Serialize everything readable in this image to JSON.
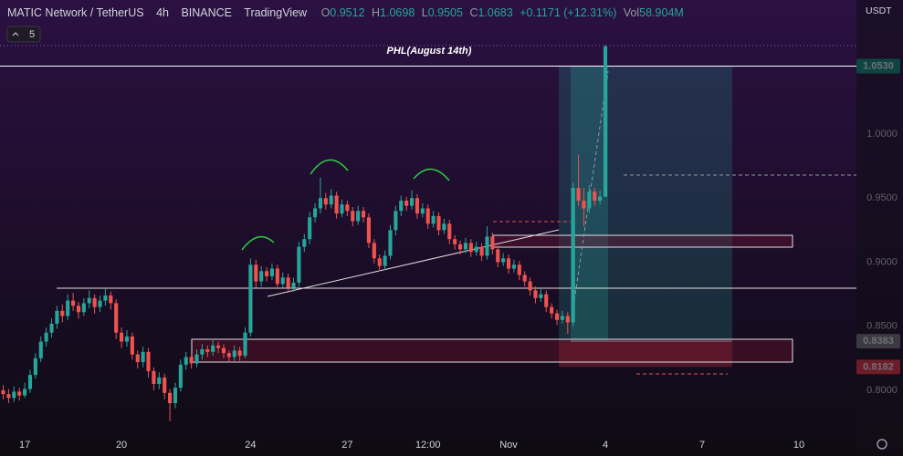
{
  "header": {
    "symbol": "MATIC Network / TetherUS",
    "interval": "4h",
    "exchange": "BINANCE",
    "source": "TradingView",
    "ohlc": [
      {
        "key": "O",
        "value": "0.9512"
      },
      {
        "key": "H",
        "value": "1.0698"
      },
      {
        "key": "L",
        "value": "0.9505"
      },
      {
        "key": "C",
        "value": "1.0683"
      }
    ],
    "change": "+0.1171 (+12.31%)",
    "volume": {
      "key": "Vol",
      "value": "58.904M"
    },
    "indicators": "5",
    "currency": "USDT"
  },
  "chart_data": {
    "type": "candlestick",
    "annotation": "PHL(August 14th)",
    "up_color": "#26a69a",
    "down_color": "#ef5350",
    "xlim": [
      -0.6,
      158.7
    ],
    "xticks": [
      {
        "value": 4,
        "label": "17"
      },
      {
        "value": 22,
        "label": "20"
      },
      {
        "value": 46,
        "label": "24"
      },
      {
        "value": 64,
        "label": "27"
      },
      {
        "value": 79,
        "label": "12:00"
      },
      {
        "value": 94,
        "label": "Nov"
      },
      {
        "value": 112,
        "label": "4"
      },
      {
        "value": 130,
        "label": "7"
      },
      {
        "value": 148,
        "label": "10"
      }
    ],
    "ylim": [
      0.7644,
      1.1046
    ],
    "yticks": [
      {
        "value": 0.8,
        "label": "0.8000"
      },
      {
        "value": 0.85,
        "label": "0.8500"
      },
      {
        "value": 0.9,
        "label": "0.9000"
      },
      {
        "value": 0.95,
        "label": "0.9500"
      },
      {
        "value": 1.0,
        "label": "1.0000"
      }
    ],
    "price_labels": [
      {
        "value": 1.053,
        "label": "1.0530",
        "color": "#089981"
      },
      {
        "value": 0.8383,
        "label": "0.8383",
        "color": "#787b86"
      },
      {
        "value": 0.8182,
        "label": "0.8182",
        "color": "#f23645"
      }
    ],
    "candles": [
      [
        0.8,
        0.804,
        0.793,
        0.797
      ],
      [
        0.797,
        0.801,
        0.79,
        0.794
      ],
      [
        0.794,
        0.803,
        0.791,
        0.799
      ],
      [
        0.799,
        0.802,
        0.792,
        0.796
      ],
      [
        0.796,
        0.806,
        0.794,
        0.801
      ],
      [
        0.801,
        0.816,
        0.798,
        0.812
      ],
      [
        0.812,
        0.829,
        0.809,
        0.825
      ],
      [
        0.825,
        0.842,
        0.822,
        0.838
      ],
      [
        0.838,
        0.849,
        0.834,
        0.845
      ],
      [
        0.845,
        0.856,
        0.841,
        0.852
      ],
      [
        0.852,
        0.866,
        0.848,
        0.862
      ],
      [
        0.862,
        0.867,
        0.853,
        0.858
      ],
      [
        0.858,
        0.875,
        0.855,
        0.87
      ],
      [
        0.87,
        0.876,
        0.862,
        0.866
      ],
      [
        0.866,
        0.869,
        0.856,
        0.861
      ],
      [
        0.861,
        0.872,
        0.858,
        0.868
      ],
      [
        0.868,
        0.878,
        0.864,
        0.872
      ],
      [
        0.872,
        0.875,
        0.86,
        0.865
      ],
      [
        0.865,
        0.874,
        0.861,
        0.87
      ],
      [
        0.87,
        0.879,
        0.866,
        0.874
      ],
      [
        0.874,
        0.877,
        0.863,
        0.868
      ],
      [
        0.868,
        0.871,
        0.84,
        0.845
      ],
      [
        0.845,
        0.849,
        0.833,
        0.838
      ],
      [
        0.838,
        0.847,
        0.834,
        0.842
      ],
      [
        0.842,
        0.845,
        0.824,
        0.828
      ],
      [
        0.828,
        0.831,
        0.817,
        0.822
      ],
      [
        0.822,
        0.834,
        0.818,
        0.83
      ],
      [
        0.83,
        0.833,
        0.81,
        0.815
      ],
      [
        0.815,
        0.818,
        0.8,
        0.805
      ],
      [
        0.805,
        0.814,
        0.801,
        0.81
      ],
      [
        0.81,
        0.813,
        0.793,
        0.798
      ],
      [
        0.798,
        0.801,
        0.776,
        0.79
      ],
      [
        0.79,
        0.806,
        0.786,
        0.802
      ],
      [
        0.802,
        0.824,
        0.799,
        0.82
      ],
      [
        0.82,
        0.83,
        0.816,
        0.826
      ],
      [
        0.826,
        0.829,
        0.817,
        0.821
      ],
      [
        0.821,
        0.832,
        0.818,
        0.828
      ],
      [
        0.828,
        0.836,
        0.824,
        0.832
      ],
      [
        0.832,
        0.835,
        0.826,
        0.83
      ],
      [
        0.83,
        0.839,
        0.827,
        0.835
      ],
      [
        0.835,
        0.838,
        0.829,
        0.833
      ],
      [
        0.833,
        0.836,
        0.825,
        0.829
      ],
      [
        0.829,
        0.831,
        0.822,
        0.826
      ],
      [
        0.826,
        0.835,
        0.823,
        0.831
      ],
      [
        0.831,
        0.834,
        0.823,
        0.827
      ],
      [
        0.827,
        0.849,
        0.825,
        0.845
      ],
      [
        0.845,
        0.903,
        0.842,
        0.898
      ],
      [
        0.898,
        0.902,
        0.88,
        0.885
      ],
      [
        0.885,
        0.897,
        0.881,
        0.893
      ],
      [
        0.893,
        0.896,
        0.885,
        0.889
      ],
      [
        0.889,
        0.899,
        0.886,
        0.895
      ],
      [
        0.895,
        0.898,
        0.879,
        0.883
      ],
      [
        0.883,
        0.892,
        0.88,
        0.888
      ],
      [
        0.888,
        0.891,
        0.876,
        0.88
      ],
      [
        0.88,
        0.888,
        0.877,
        0.884
      ],
      [
        0.884,
        0.916,
        0.881,
        0.912
      ],
      [
        0.912,
        0.922,
        0.908,
        0.918
      ],
      [
        0.918,
        0.939,
        0.914,
        0.935
      ],
      [
        0.935,
        0.946,
        0.931,
        0.942
      ],
      [
        0.942,
        0.966,
        0.938,
        0.95
      ],
      [
        0.95,
        0.954,
        0.941,
        0.945
      ],
      [
        0.945,
        0.957,
        0.942,
        0.952
      ],
      [
        0.952,
        0.955,
        0.934,
        0.938
      ],
      [
        0.938,
        0.949,
        0.935,
        0.945
      ],
      [
        0.945,
        0.948,
        0.936,
        0.94
      ],
      [
        0.94,
        0.943,
        0.928,
        0.932
      ],
      [
        0.932,
        0.944,
        0.929,
        0.94
      ],
      [
        0.94,
        0.943,
        0.931,
        0.935
      ],
      [
        0.935,
        0.938,
        0.911,
        0.915
      ],
      [
        0.915,
        0.918,
        0.899,
        0.903
      ],
      [
        0.903,
        0.906,
        0.893,
        0.897
      ],
      [
        0.897,
        0.909,
        0.894,
        0.905
      ],
      [
        0.905,
        0.929,
        0.902,
        0.925
      ],
      [
        0.925,
        0.944,
        0.921,
        0.94
      ],
      [
        0.94,
        0.952,
        0.936,
        0.948
      ],
      [
        0.948,
        0.951,
        0.94,
        0.944
      ],
      [
        0.944,
        0.956,
        0.941,
        0.95
      ],
      [
        0.95,
        0.953,
        0.934,
        0.938
      ],
      [
        0.938,
        0.946,
        0.935,
        0.942
      ],
      [
        0.942,
        0.945,
        0.926,
        0.93
      ],
      [
        0.93,
        0.94,
        0.927,
        0.936
      ],
      [
        0.936,
        0.939,
        0.921,
        0.925
      ],
      [
        0.925,
        0.934,
        0.922,
        0.93
      ],
      [
        0.93,
        0.933,
        0.914,
        0.918
      ],
      [
        0.918,
        0.921,
        0.91,
        0.914
      ],
      [
        0.914,
        0.917,
        0.906,
        0.91
      ],
      [
        0.91,
        0.919,
        0.907,
        0.915
      ],
      [
        0.915,
        0.918,
        0.904,
        0.908
      ],
      [
        0.908,
        0.916,
        0.905,
        0.912
      ],
      [
        0.912,
        0.915,
        0.901,
        0.905
      ],
      [
        0.905,
        0.928,
        0.902,
        0.92
      ],
      [
        0.92,
        0.923,
        0.906,
        0.91
      ],
      [
        0.91,
        0.913,
        0.896,
        0.9
      ],
      [
        0.9,
        0.907,
        0.897,
        0.903
      ],
      [
        0.903,
        0.906,
        0.891,
        0.895
      ],
      [
        0.895,
        0.902,
        0.892,
        0.898
      ],
      [
        0.898,
        0.901,
        0.886,
        0.89
      ],
      [
        0.89,
        0.893,
        0.881,
        0.885
      ],
      [
        0.885,
        0.888,
        0.874,
        0.878
      ],
      [
        0.878,
        0.881,
        0.868,
        0.872
      ],
      [
        0.872,
        0.879,
        0.869,
        0.875
      ],
      [
        0.875,
        0.878,
        0.861,
        0.865
      ],
      [
        0.865,
        0.868,
        0.856,
        0.86
      ],
      [
        0.86,
        0.863,
        0.851,
        0.855
      ],
      [
        0.855,
        0.862,
        0.852,
        0.858
      ],
      [
        0.858,
        0.861,
        0.844,
        0.853
      ],
      [
        0.853,
        0.962,
        0.85,
        0.958
      ],
      [
        0.958,
        0.984,
        0.944,
        0.948
      ],
      [
        0.948,
        0.958,
        0.928,
        0.942
      ],
      [
        0.942,
        0.96,
        0.938,
        0.955
      ],
      [
        0.955,
        0.958,
        0.944,
        0.948
      ],
      [
        0.948,
        0.956,
        0.945,
        0.9512
      ],
      [
        0.9512,
        1.0698,
        0.9505,
        1.0683
      ]
    ]
  }
}
